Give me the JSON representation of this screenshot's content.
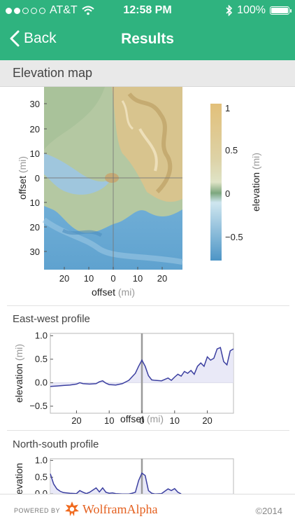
{
  "status": {
    "carrier": "AT&T",
    "time": "12:58 PM",
    "battery": "100%",
    "signal_bars_full": 2,
    "signal_bars_total": 5
  },
  "nav": {
    "back_label": "Back",
    "title": "Results"
  },
  "section": {
    "title": "Elevation map"
  },
  "map": {
    "y_ticks": [
      "30",
      "20",
      "10",
      "0",
      "10",
      "20",
      "30"
    ],
    "x_ticks": [
      "20",
      "10",
      "0",
      "10",
      "20"
    ],
    "x_label": "offset",
    "x_unit": "(mi)",
    "y_label": "offset",
    "y_unit": "(mi)",
    "colorbar_ticks": [
      "1",
      "0.5",
      "0",
      "−0.5"
    ],
    "colorbar_label": "elevation",
    "colorbar_unit": "(mi)",
    "colors": {
      "land": "#d9c89a",
      "lowland": "#a8c49a",
      "sea": "#7db4d8",
      "deep_sea": "#5a9ecb"
    }
  },
  "ew_profile": {
    "title": "East-west profile",
    "y_ticks": [
      "1.0",
      "0.5",
      "0.0",
      "−0.5"
    ],
    "x_ticks": [
      "20",
      "10",
      "0",
      "10",
      "20"
    ],
    "x_label": "offset",
    "x_unit": "(mi)",
    "y_label": "elevation",
    "y_unit": "(mi)"
  },
  "ns_profile": {
    "title": "North-south profile",
    "y_ticks": [
      "1.0",
      "0.5",
      "0.0"
    ],
    "y_label": "elevation"
  },
  "chart_data": [
    {
      "type": "line",
      "title": "East-west profile",
      "xlabel": "offset (mi)",
      "ylabel": "elevation (mi)",
      "xlim": [
        -28,
        28
      ],
      "ylim": [
        -0.65,
        1.05
      ],
      "x_tick_labels": [
        "20",
        "10",
        "0",
        "10",
        "20"
      ],
      "series": [
        {
          "x": [
            -28,
            -26,
            -24,
            -22,
            -20,
            -19,
            -18,
            -16,
            -14,
            -13,
            -12,
            -11,
            -10,
            -8,
            -6,
            -4,
            -2,
            -1,
            0,
            1,
            2,
            3,
            4,
            6,
            8,
            9,
            10,
            11,
            12,
            13,
            14,
            15,
            16,
            17,
            18,
            19,
            20,
            21,
            22,
            23,
            24,
            25,
            26,
            27,
            28
          ],
          "y": [
            -0.08,
            -0.07,
            -0.06,
            -0.05,
            -0.03,
            0.0,
            -0.02,
            -0.03,
            -0.02,
            0.02,
            0.04,
            -0.01,
            -0.04,
            -0.05,
            -0.02,
            0.05,
            0.2,
            0.35,
            0.48,
            0.35,
            0.15,
            0.06,
            0.05,
            0.04,
            0.1,
            0.05,
            0.12,
            0.18,
            0.14,
            0.24,
            0.2,
            0.26,
            0.18,
            0.35,
            0.42,
            0.35,
            0.55,
            0.48,
            0.52,
            0.72,
            0.75,
            0.45,
            0.38,
            0.68,
            0.72
          ]
        }
      ]
    },
    {
      "type": "line",
      "title": "North-south profile",
      "ylabel": "elevation",
      "xlim": [
        -28,
        28
      ],
      "ylim": [
        -0.1,
        1.05
      ],
      "series": [
        {
          "x": [
            -28,
            -27,
            -26,
            -25,
            -24,
            -22,
            -20,
            -19,
            -18,
            -17,
            -16,
            -14,
            -13,
            -12,
            -11,
            -10,
            -9,
            -8,
            -6,
            -4,
            -3,
            -2,
            -1,
            0,
            1,
            2,
            3,
            4,
            6,
            8,
            9,
            10,
            11,
            12
          ],
          "y": [
            0.6,
            0.3,
            0.15,
            0.08,
            0.04,
            0.02,
            0.01,
            0.1,
            0.05,
            0.01,
            0.05,
            0.18,
            0.06,
            0.18,
            0.05,
            0.02,
            0.03,
            0.01,
            0.0,
            0.0,
            0.02,
            0.05,
            0.4,
            0.62,
            0.55,
            0.1,
            0.02,
            0.0,
            0.01,
            0.15,
            0.1,
            0.16,
            0.05,
            0.0
          ]
        }
      ]
    }
  ],
  "footer": {
    "powered_by": "POWERED BY",
    "brand": "WolframAlpha",
    "copyright": "©2014"
  }
}
